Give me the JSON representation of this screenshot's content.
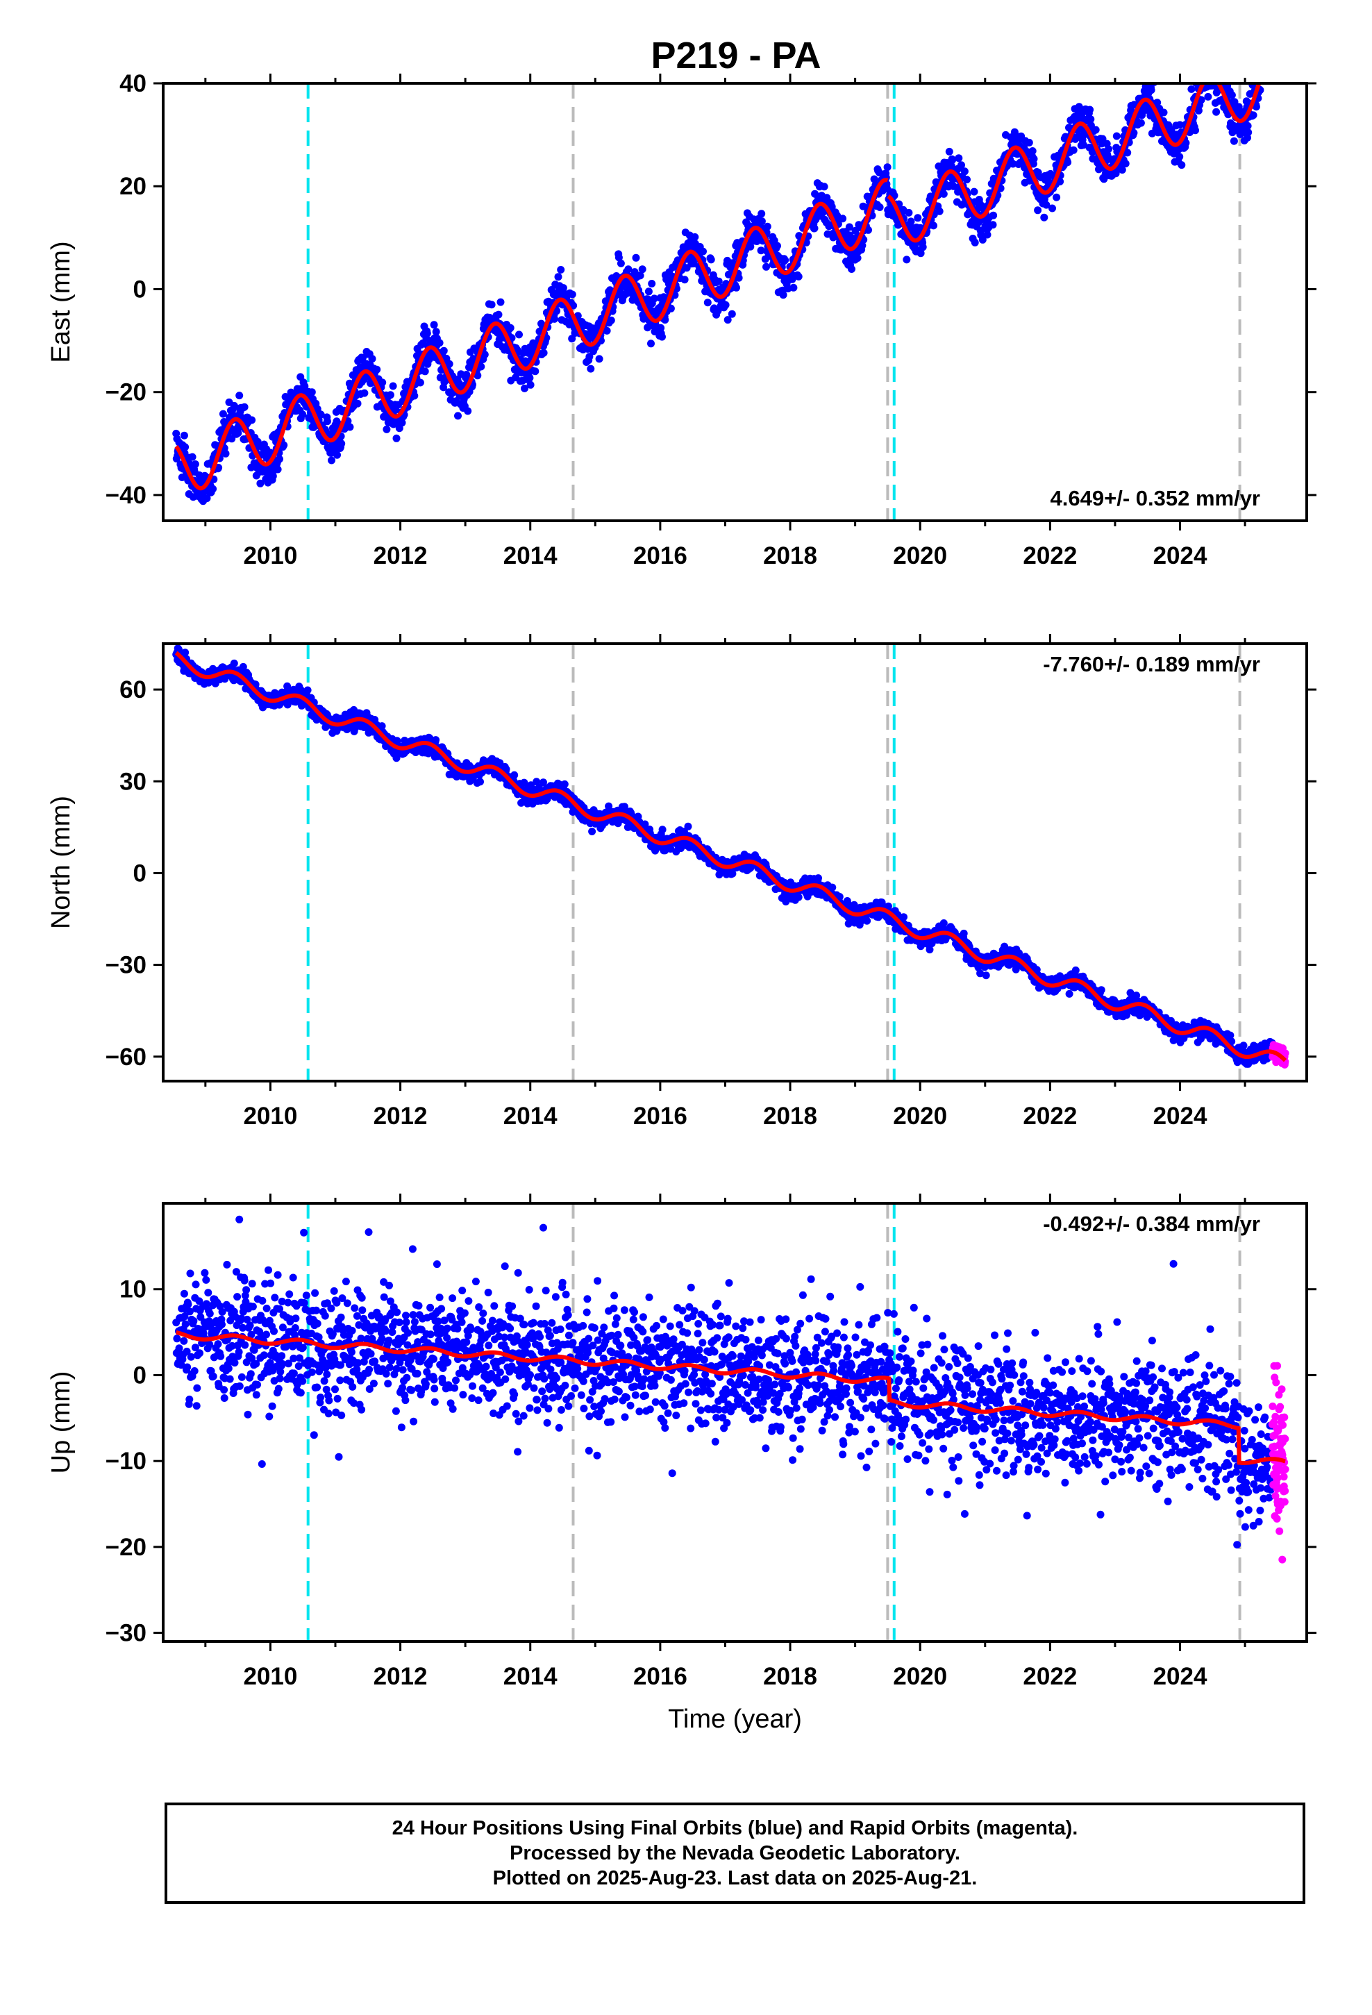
{
  "title": "P219 - PA",
  "chart_data": [
    {
      "type": "scatter",
      "panel": "east",
      "ylabel": "East (mm)",
      "xlabel": "",
      "rate_label": "4.649+/- 0.352 mm/yr",
      "xlim": [
        2008.35,
        2025.95
      ],
      "ylim": [
        -45,
        40
      ],
      "yticks": [
        -40,
        -20,
        0,
        20,
        40
      ],
      "xticks": [
        2010,
        2012,
        2014,
        2016,
        2018,
        2020,
        2022,
        2024
      ],
      "model": {
        "start": 2008.55,
        "end": 2025.62,
        "intercept": -35,
        "rate": 4.649,
        "annual_amplitude": 5.5,
        "offsets": [
          {
            "epoch": 2019.5,
            "value": -3
          }
        ]
      },
      "series": [
        {
          "color": "#0000ff",
          "x_range": [
            2008.55,
            2025.42
          ]
        },
        {
          "color": "#ff00ff",
          "x_range": [
            2025.42,
            2025.62
          ]
        }
      ]
    },
    {
      "type": "scatter",
      "panel": "north",
      "ylabel": "North (mm)",
      "xlabel": "",
      "rate_label": "-7.760+/- 0.189 mm/yr",
      "xlim": [
        2008.35,
        2025.95
      ],
      "ylim": [
        -68,
        75
      ],
      "yticks": [
        -60,
        -30,
        0,
        30,
        60
      ],
      "xticks": [
        2010,
        2012,
        2014,
        2016,
        2018,
        2020,
        2022,
        2024
      ],
      "model": {
        "start": 2008.55,
        "end": 2025.62,
        "intercept": 70,
        "rate": -7.76,
        "annual_amplitude": 2.5,
        "offsets": []
      },
      "series": [
        {
          "color": "#0000ff",
          "x_range": [
            2008.55,
            2025.42
          ]
        },
        {
          "color": "#ff00ff",
          "x_range": [
            2025.42,
            2025.62
          ]
        }
      ]
    },
    {
      "type": "scatter",
      "panel": "up",
      "ylabel": "Up (mm)",
      "xlabel": "Time (year)",
      "rate_label": "-0.492+/- 0.384 mm/yr",
      "xlim": [
        2008.35,
        2025.95
      ],
      "ylim": [
        -31,
        20
      ],
      "yticks": [
        -30,
        -20,
        -10,
        0,
        10
      ],
      "xticks": [
        2010,
        2012,
        2014,
        2016,
        2018,
        2020,
        2022,
        2024
      ],
      "model": {
        "start": 2008.55,
        "end": 2025.62,
        "intercept": 4.7,
        "rate": -0.492,
        "annual_amplitude": 0.35,
        "offsets": [
          {
            "epoch": 2019.52,
            "value": -2.5
          },
          {
            "epoch": 2024.9,
            "value": -4
          }
        ]
      },
      "series": [
        {
          "color": "#0000ff",
          "x_range": [
            2008.55,
            2025.42
          ]
        },
        {
          "color": "#ff00ff",
          "x_range": [
            2025.42,
            2025.62
          ]
        }
      ]
    }
  ],
  "event_lines": [
    {
      "epoch": 2010.58,
      "color": "#00e5ee"
    },
    {
      "epoch": 2014.66,
      "color": "#bbbbbb"
    },
    {
      "epoch": 2019.5,
      "color": "#bbbbbb"
    },
    {
      "epoch": 2019.6,
      "color": "#00e5ee"
    },
    {
      "epoch": 2024.92,
      "color": "#bbbbbb"
    }
  ],
  "colors": {
    "final_orbits": "#0000ff",
    "rapid_orbits": "#ff00ff",
    "model": "#ff0000",
    "equipment_change": "#00e5ee",
    "earthquake": "#bbbbbb"
  },
  "footer": {
    "line1": "24 Hour Positions Using Final Orbits (blue) and Rapid Orbits (magenta).",
    "line2": "Processed by the Nevada Geodetic Laboratory.",
    "line3": "Plotted on 2025-Aug-23. Last data on 2025-Aug-21."
  }
}
